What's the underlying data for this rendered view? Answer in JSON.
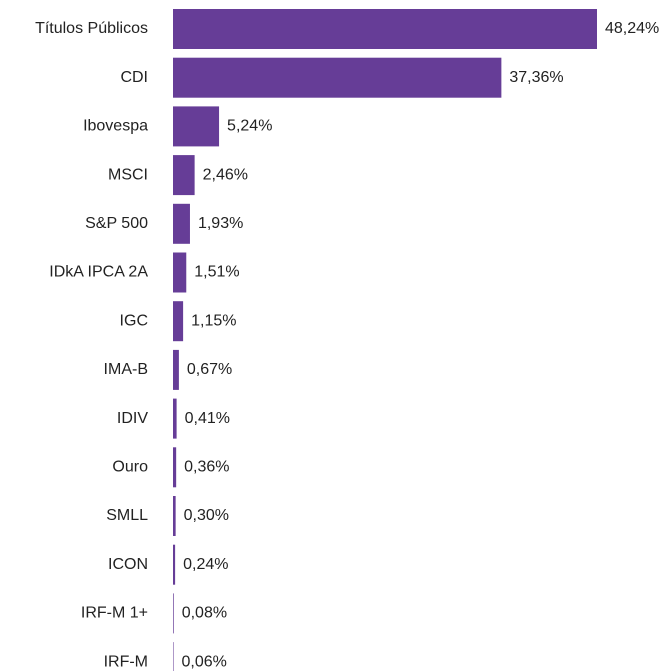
{
  "chart_data": {
    "type": "bar",
    "orientation": "horizontal",
    "categories": [
      "Títulos Públicos",
      "CDI",
      "Ibovespa",
      "MSCI",
      "S&P 500",
      "IDkA IPCA 2A",
      "IGC",
      "IMA-B",
      "IDIV",
      "Ouro",
      "SMLL",
      "ICON",
      "IRF-M 1+",
      "IRF-M"
    ],
    "values": [
      48.24,
      37.36,
      5.24,
      2.46,
      1.93,
      1.51,
      1.15,
      0.67,
      0.41,
      0.36,
      0.3,
      0.24,
      0.08,
      0.06
    ],
    "value_labels": [
      "48,24%",
      "37,36%",
      "5,24%",
      "2,46%",
      "1,93%",
      "1,51%",
      "1,15%",
      "0,67%",
      "0,41%",
      "0,36%",
      "0,30%",
      "0,24%",
      "0,08%",
      "0,06%"
    ],
    "color": "#663d97"
  }
}
